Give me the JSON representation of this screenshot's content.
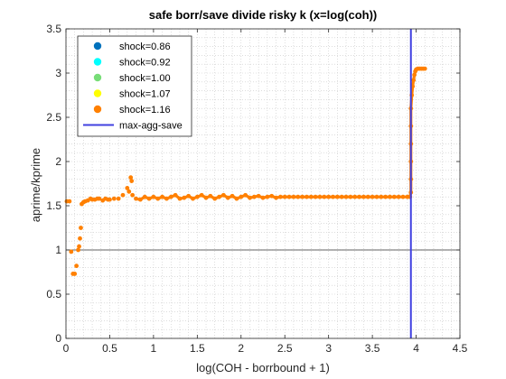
{
  "chart_data": {
    "type": "scatter",
    "title": "safe borr/save divide risky k (x=log(coh))",
    "xlabel": "log(COH - borrbound + 1)",
    "ylabel": "aprime/kprime",
    "xlim": [
      0,
      4.5
    ],
    "ylim": [
      0,
      3.5
    ],
    "xticks": [
      "0",
      "0.5",
      "1",
      "1.5",
      "2",
      "2.5",
      "3",
      "3.5",
      "4",
      "4.5"
    ],
    "xtick_values": [
      0,
      0.5,
      1,
      1.5,
      2,
      2.5,
      3,
      3.5,
      4,
      4.5
    ],
    "yticks": [
      "0",
      "0.5",
      "1",
      "1.5",
      "2",
      "2.5",
      "3",
      "3.5"
    ],
    "ytick_values": [
      0,
      0.5,
      1,
      1.5,
      2,
      2.5,
      3,
      3.5
    ],
    "grid": "minor dotted",
    "legend_location": "top-left",
    "reference_hline": 1,
    "series": [
      {
        "name": "shock=0.86",
        "color": "#0072BD",
        "marker": "circle",
        "points": []
      },
      {
        "name": "shock=0.92",
        "color": "#00FFFF",
        "marker": "circle",
        "points": []
      },
      {
        "name": "shock=1.00",
        "color": "#77DD77",
        "marker": "circle",
        "points": []
      },
      {
        "name": "shock=1.07",
        "color": "#FFFF00",
        "marker": "circle",
        "points": []
      },
      {
        "name": "shock=1.16",
        "color": "#FF8000",
        "marker": "circle",
        "points": [
          [
            0.01,
            1.55
          ],
          [
            0.04,
            1.55
          ],
          [
            0.06,
            0.98
          ],
          [
            0.08,
            0.73
          ],
          [
            0.1,
            0.73
          ],
          [
            0.12,
            0.82
          ],
          [
            0.14,
            1.0
          ],
          [
            0.15,
            1.04
          ],
          [
            0.16,
            1.13
          ],
          [
            0.17,
            1.25
          ],
          [
            0.18,
            1.52
          ],
          [
            0.2,
            1.54
          ],
          [
            0.22,
            1.55
          ],
          [
            0.25,
            1.56
          ],
          [
            0.28,
            1.58
          ],
          [
            0.3,
            1.57
          ],
          [
            0.33,
            1.57
          ],
          [
            0.36,
            1.58
          ],
          [
            0.38,
            1.58
          ],
          [
            0.42,
            1.56
          ],
          [
            0.45,
            1.58
          ],
          [
            0.48,
            1.57
          ],
          [
            0.5,
            1.57
          ],
          [
            0.55,
            1.58
          ],
          [
            0.6,
            1.58
          ],
          [
            0.65,
            1.62
          ],
          [
            0.7,
            1.7
          ],
          [
            0.72,
            1.66
          ],
          [
            0.74,
            1.82
          ],
          [
            0.75,
            1.78
          ],
          [
            0.76,
            1.62
          ],
          [
            0.8,
            1.58
          ],
          [
            0.85,
            1.57
          ],
          [
            0.9,
            1.6
          ],
          [
            0.95,
            1.58
          ],
          [
            1.0,
            1.6
          ],
          [
            1.05,
            1.58
          ],
          [
            1.1,
            1.6
          ],
          [
            1.15,
            1.58
          ],
          [
            1.2,
            1.6
          ],
          [
            1.25,
            1.62
          ],
          [
            1.3,
            1.58
          ],
          [
            1.35,
            1.59
          ],
          [
            1.4,
            1.61
          ],
          [
            1.45,
            1.58
          ],
          [
            1.5,
            1.6
          ],
          [
            1.55,
            1.62
          ],
          [
            1.6,
            1.59
          ],
          [
            1.65,
            1.61
          ],
          [
            1.7,
            1.58
          ],
          [
            1.75,
            1.6
          ],
          [
            1.8,
            1.62
          ],
          [
            1.85,
            1.59
          ],
          [
            1.9,
            1.61
          ],
          [
            1.95,
            1.58
          ],
          [
            2.0,
            1.6
          ],
          [
            2.05,
            1.62
          ],
          [
            2.1,
            1.59
          ],
          [
            2.15,
            1.6
          ],
          [
            2.2,
            1.61
          ],
          [
            2.25,
            1.59
          ],
          [
            2.3,
            1.6
          ],
          [
            2.35,
            1.61
          ],
          [
            2.4,
            1.59
          ],
          [
            2.45,
            1.6
          ],
          [
            2.5,
            1.6
          ],
          [
            2.55,
            1.6
          ],
          [
            2.6,
            1.6
          ],
          [
            2.65,
            1.6
          ],
          [
            2.7,
            1.6
          ],
          [
            2.75,
            1.6
          ],
          [
            2.8,
            1.6
          ],
          [
            2.85,
            1.6
          ],
          [
            2.9,
            1.6
          ],
          [
            2.95,
            1.6
          ],
          [
            3.0,
            1.6
          ],
          [
            3.05,
            1.6
          ],
          [
            3.1,
            1.6
          ],
          [
            3.15,
            1.6
          ],
          [
            3.2,
            1.6
          ],
          [
            3.25,
            1.6
          ],
          [
            3.3,
            1.6
          ],
          [
            3.35,
            1.6
          ],
          [
            3.4,
            1.6
          ],
          [
            3.45,
            1.6
          ],
          [
            3.5,
            1.6
          ],
          [
            3.55,
            1.6
          ],
          [
            3.6,
            1.6
          ],
          [
            3.65,
            1.6
          ],
          [
            3.7,
            1.6
          ],
          [
            3.75,
            1.6
          ],
          [
            3.8,
            1.6
          ],
          [
            3.85,
            1.6
          ],
          [
            3.9,
            1.6
          ],
          [
            3.93,
            1.6
          ],
          [
            3.94,
            1.65
          ],
          [
            3.94,
            1.8
          ],
          [
            3.94,
            2.0
          ],
          [
            3.94,
            2.2
          ],
          [
            3.94,
            2.4
          ],
          [
            3.94,
            2.6
          ],
          [
            3.95,
            2.75
          ],
          [
            3.96,
            2.85
          ],
          [
            3.97,
            2.92
          ],
          [
            3.98,
            2.98
          ],
          [
            3.99,
            3.02
          ],
          [
            4.0,
            3.04
          ],
          [
            4.02,
            3.05
          ],
          [
            4.04,
            3.05
          ],
          [
            4.06,
            3.05
          ],
          [
            4.08,
            3.05
          ],
          [
            4.1,
            3.05
          ]
        ]
      }
    ],
    "vline": {
      "name": "max-agg-save",
      "x": 3.94,
      "color": "#4040E0"
    }
  }
}
